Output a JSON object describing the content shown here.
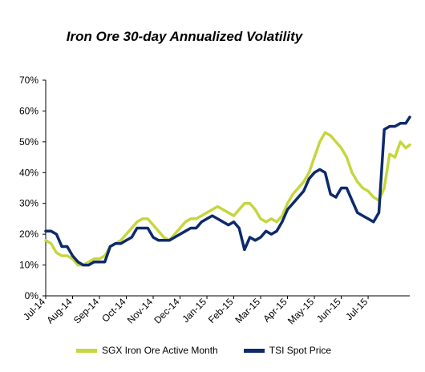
{
  "chart_data": {
    "type": "line",
    "title": "Iron Ore 30-day Annualized Volatility",
    "xlabel": "",
    "ylabel": "",
    "ylim": [
      0,
      70
    ],
    "yticks": [
      "0%",
      "10%",
      "20%",
      "30%",
      "40%",
      "50%",
      "60%",
      "70%"
    ],
    "x_tick_labels": [
      "Jul-14",
      "Aug-14",
      "Sep-14",
      "Oct-14",
      "Nov-14",
      "Dec-14",
      "Jan-15",
      "Feb-15",
      "Mar-15",
      "Apr-15",
      "May-15",
      "Jun-15",
      "Jul-15"
    ],
    "x_range_months": [
      0,
      13.55
    ],
    "grid": false,
    "legend_position": "bottom",
    "series": [
      {
        "name": "SGX Iron Ore Active Month",
        "color": "#c6d640",
        "x": [
          0,
          0.2,
          0.4,
          0.6,
          0.8,
          1.0,
          1.2,
          1.4,
          1.6,
          1.8,
          2.0,
          2.2,
          2.4,
          2.6,
          2.8,
          3.0,
          3.2,
          3.4,
          3.6,
          3.8,
          4.0,
          4.2,
          4.4,
          4.6,
          4.8,
          5.0,
          5.2,
          5.4,
          5.6,
          5.8,
          6.0,
          6.2,
          6.4,
          6.6,
          6.8,
          7.0,
          7.2,
          7.4,
          7.6,
          7.8,
          8.0,
          8.2,
          8.4,
          8.6,
          8.8,
          9.0,
          9.2,
          9.4,
          9.6,
          9.8,
          10.0,
          10.2,
          10.4,
          10.6,
          10.8,
          11.0,
          11.2,
          11.4,
          11.6,
          11.8,
          12.0,
          12.2,
          12.4,
          12.6,
          12.8,
          13.0,
          13.2,
          13.4,
          13.55
        ],
        "values": [
          18,
          17,
          14,
          13,
          13,
          12,
          10,
          10,
          11,
          12,
          12,
          13,
          16,
          17,
          18,
          20,
          22,
          24,
          25,
          25,
          23,
          21,
          19,
          18,
          20,
          22,
          24,
          25,
          25,
          26,
          27,
          28,
          29,
          28,
          27,
          26,
          28,
          30,
          30,
          28,
          25,
          24,
          25,
          24,
          26,
          30,
          33,
          35,
          37,
          40,
          45,
          50,
          53,
          52,
          50,
          48,
          45,
          40,
          37,
          35,
          34,
          32,
          31,
          35,
          46,
          45,
          50,
          48,
          49
        ]
      },
      {
        "name": "TSI Spot Price",
        "color": "#0d2a6b",
        "x": [
          0,
          0.2,
          0.4,
          0.6,
          0.8,
          1.0,
          1.2,
          1.4,
          1.6,
          1.8,
          2.0,
          2.2,
          2.4,
          2.6,
          2.8,
          3.0,
          3.2,
          3.4,
          3.6,
          3.8,
          4.0,
          4.2,
          4.4,
          4.6,
          4.8,
          5.0,
          5.2,
          5.4,
          5.6,
          5.8,
          6.0,
          6.2,
          6.4,
          6.6,
          6.8,
          7.0,
          7.2,
          7.4,
          7.6,
          7.8,
          8.0,
          8.2,
          8.4,
          8.6,
          8.8,
          9.0,
          9.2,
          9.4,
          9.6,
          9.8,
          10.0,
          10.2,
          10.4,
          10.6,
          10.8,
          11.0,
          11.2,
          11.4,
          11.6,
          11.8,
          12.0,
          12.2,
          12.4,
          12.6,
          12.8,
          13.0,
          13.2,
          13.4,
          13.55
        ],
        "values": [
          21,
          21,
          20,
          16,
          16,
          13,
          11,
          10,
          10,
          11,
          11,
          11,
          16,
          17,
          17,
          18,
          19,
          22,
          22,
          22,
          19,
          18,
          18,
          18,
          19,
          20,
          21,
          22,
          22,
          24,
          25,
          26,
          25,
          24,
          23,
          24,
          22,
          15,
          19,
          18,
          19,
          21,
          20,
          21,
          24,
          28,
          30,
          32,
          34,
          38,
          40,
          41,
          40,
          33,
          32,
          35,
          35,
          31,
          27,
          26,
          25,
          24,
          27,
          54,
          55,
          55,
          56,
          56,
          58
        ]
      }
    ]
  }
}
